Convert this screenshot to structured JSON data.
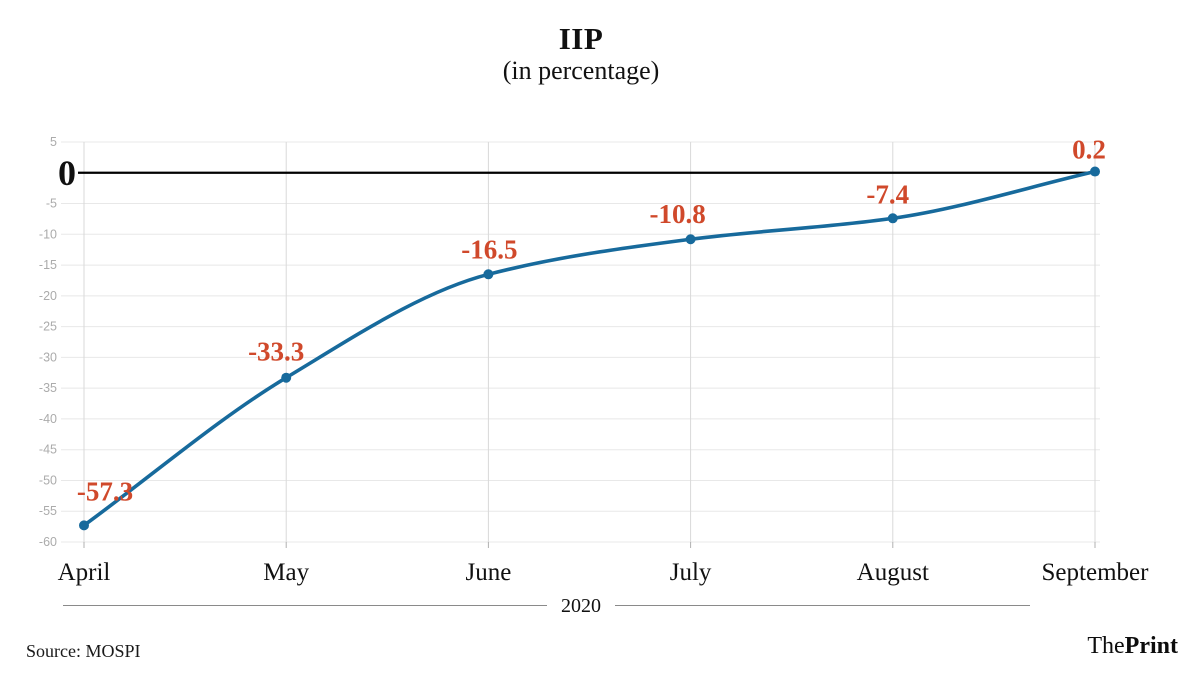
{
  "header": {
    "title": "IIP",
    "subtitle": "(in percentage)"
  },
  "x_axis": {
    "group_label": "2020"
  },
  "footer": {
    "source": "Source: MOSPI",
    "brand_regular": "The",
    "brand_bold": "Print"
  },
  "colors": {
    "line": "#176a9c",
    "marker": "#176a9c",
    "data_label": "#d0492b",
    "zero_line": "#000000",
    "grid_h": "#e8e8e8",
    "grid_v": "#d9d9d9",
    "tick_mark": "#b0b0b0",
    "tick_label": "#ababab",
    "axis_text": "#111111"
  },
  "chart_data": {
    "type": "line",
    "categories": [
      "April",
      "May",
      "June",
      "July",
      "August",
      "September"
    ],
    "values": [
      -57.3,
      -33.3,
      -16.5,
      -10.8,
      -7.4,
      0.2
    ],
    "data_labels": [
      "-57.3",
      "-33.3",
      "-16.5",
      "-10.8",
      "-7.4",
      "0.2"
    ],
    "title": "IIP",
    "subtitle": "(in percentage)",
    "xlabel": "2020",
    "ylabel": "",
    "ylim": [
      -60,
      5
    ],
    "ytick_step": 5,
    "grid": true,
    "legend": "none",
    "zero_baseline": true,
    "source": "MOSPI"
  }
}
